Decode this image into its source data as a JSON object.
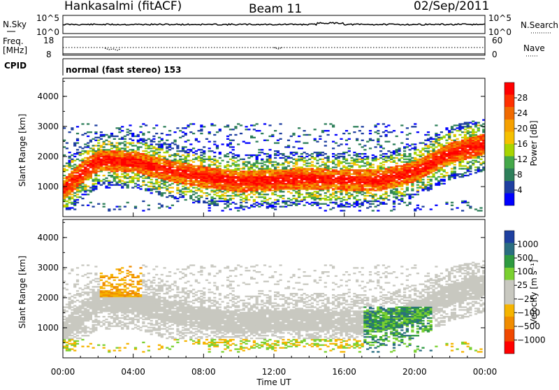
{
  "header": {
    "radar": "Hankasalmi (fitACF)",
    "beam": "Beam 11",
    "date": "02/Sep/2011"
  },
  "noise_panel": {
    "left_label": "N.Sky",
    "left_ticks": [
      "10^5",
      "10^0"
    ],
    "right_ticks": [
      "10^5",
      "10^0"
    ],
    "right_label": "N.Search"
  },
  "freq_panel": {
    "left_label_1": "Freq.",
    "left_label_2": "[MHz]",
    "left_ticks": [
      "18",
      "8"
    ],
    "right_ticks": [
      "60",
      "0"
    ],
    "right_label": "Nave"
  },
  "cpid_panel": {
    "label": "CPID",
    "text": "normal (fast stereo) 153"
  },
  "colors": {
    "power_scale": [
      "#0000ff",
      "#1e3fa0",
      "#2e7f5a",
      "#45a84a",
      "#a8d400",
      "#f5c000",
      "#f5a000",
      "#f06a00",
      "#ff3000",
      "#ff0000"
    ],
    "velocity_scale": [
      "#ff0000",
      "#f04800",
      "#f08c00",
      "#f5b400",
      "#c8c8c0",
      "#c8c8c0",
      "#7ad030",
      "#2e9a40",
      "#2a6e80",
      "#1e40a0"
    ]
  },
  "chart_data": [
    {
      "type": "heatmap",
      "panel": "power",
      "ylabel": "Slant Range [km]",
      "ylim": [
        0,
        4600
      ],
      "yticks": [
        "4000",
        "3000",
        "2000",
        "1000"
      ],
      "colorbar": {
        "label": "Power [dB]",
        "range": [
          0,
          32
        ],
        "ticks": [
          "28",
          "24",
          "20",
          "16",
          "12",
          "8",
          "4"
        ]
      },
      "echo_band_center_km": [
        {
          "t": "00:00",
          "range": 900
        },
        {
          "t": "01:00",
          "range": 1450
        },
        {
          "t": "02:00",
          "range": 1850
        },
        {
          "t": "04:00",
          "range": 1800
        },
        {
          "t": "06:00",
          "range": 1500
        },
        {
          "t": "08:00",
          "range": 1300
        },
        {
          "t": "10:00",
          "range": 1150
        },
        {
          "t": "12:00",
          "range": 1200
        },
        {
          "t": "14:00",
          "range": 1250
        },
        {
          "t": "16:00",
          "range": 1200
        },
        {
          "t": "18:00",
          "range": 1200
        },
        {
          "t": "20:00",
          "range": 1500
        },
        {
          "t": "22:00",
          "range": 2100
        },
        {
          "t": "24:00",
          "range": 2400
        }
      ]
    },
    {
      "type": "heatmap",
      "panel": "velocity",
      "ylabel": "Slant Range [km]",
      "ylim": [
        0,
        4600
      ],
      "yticks": [
        "4000",
        "3000",
        "2000",
        "1000"
      ],
      "colorbar": {
        "label": "Velocity [m s⁻¹]",
        "ticks": [
          "1000",
          "500",
          "100",
          "25",
          "−25",
          "−100",
          "−500",
          "−1000"
        ]
      },
      "xlabel": "Time UT",
      "xticks": [
        "00:00",
        "04:00",
        "08:00",
        "12:00",
        "16:00",
        "20:00",
        "00:00"
      ]
    }
  ]
}
